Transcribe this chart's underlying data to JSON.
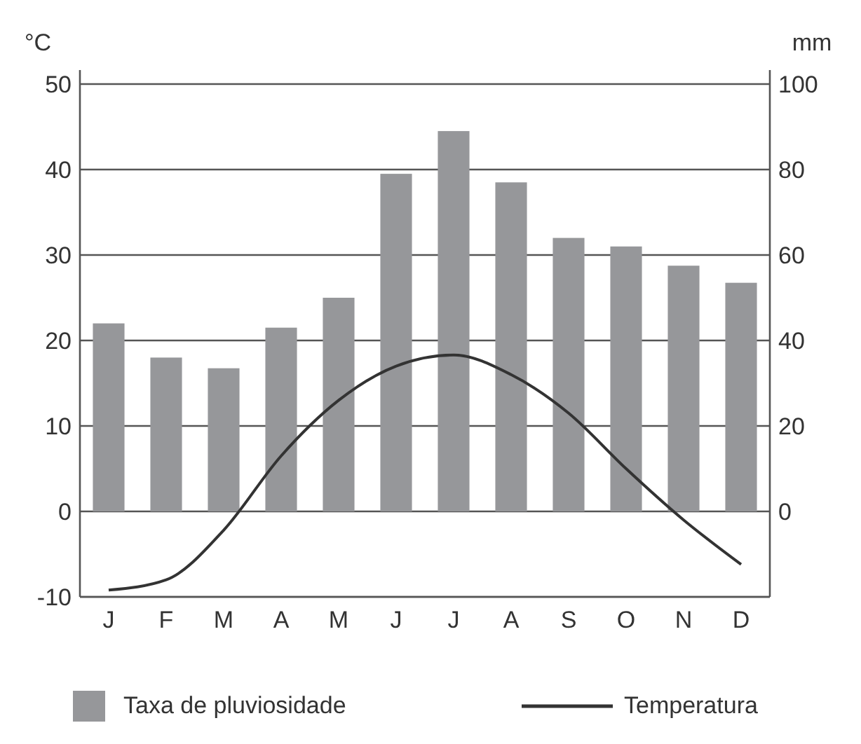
{
  "chart_data": {
    "type": "bar",
    "ylabel": "°C",
    "y2label": "mm",
    "categories": [
      "J",
      "F",
      "M",
      "A",
      "M",
      "J",
      "J",
      "A",
      "S",
      "O",
      "N",
      "D"
    ],
    "series": [
      {
        "name": "Taxa de pluviosidade",
        "axis": "y2",
        "color": "#96979a",
        "values": [
          44,
          36,
          33.5,
          43,
          50,
          79,
          89,
          77,
          64,
          62,
          57.5,
          53.5
        ]
      },
      {
        "name": "Temperatura",
        "type": "line",
        "axis": "y",
        "color": "#333333",
        "values": [
          -9.2,
          -8,
          -2.2,
          6.5,
          13,
          17,
          18.3,
          16,
          11.5,
          5,
          -1,
          -6.2
        ]
      }
    ],
    "ylim": [
      -10,
      50
    ],
    "yticks": [
      -10,
      0,
      10,
      20,
      30,
      40,
      50
    ],
    "y2lim": [
      -20,
      100
    ],
    "y2ticks": [
      0,
      20,
      40,
      60,
      80,
      100
    ],
    "grid": "y",
    "legend": "bottom",
    "marker": "none",
    "line_style": "solid"
  }
}
